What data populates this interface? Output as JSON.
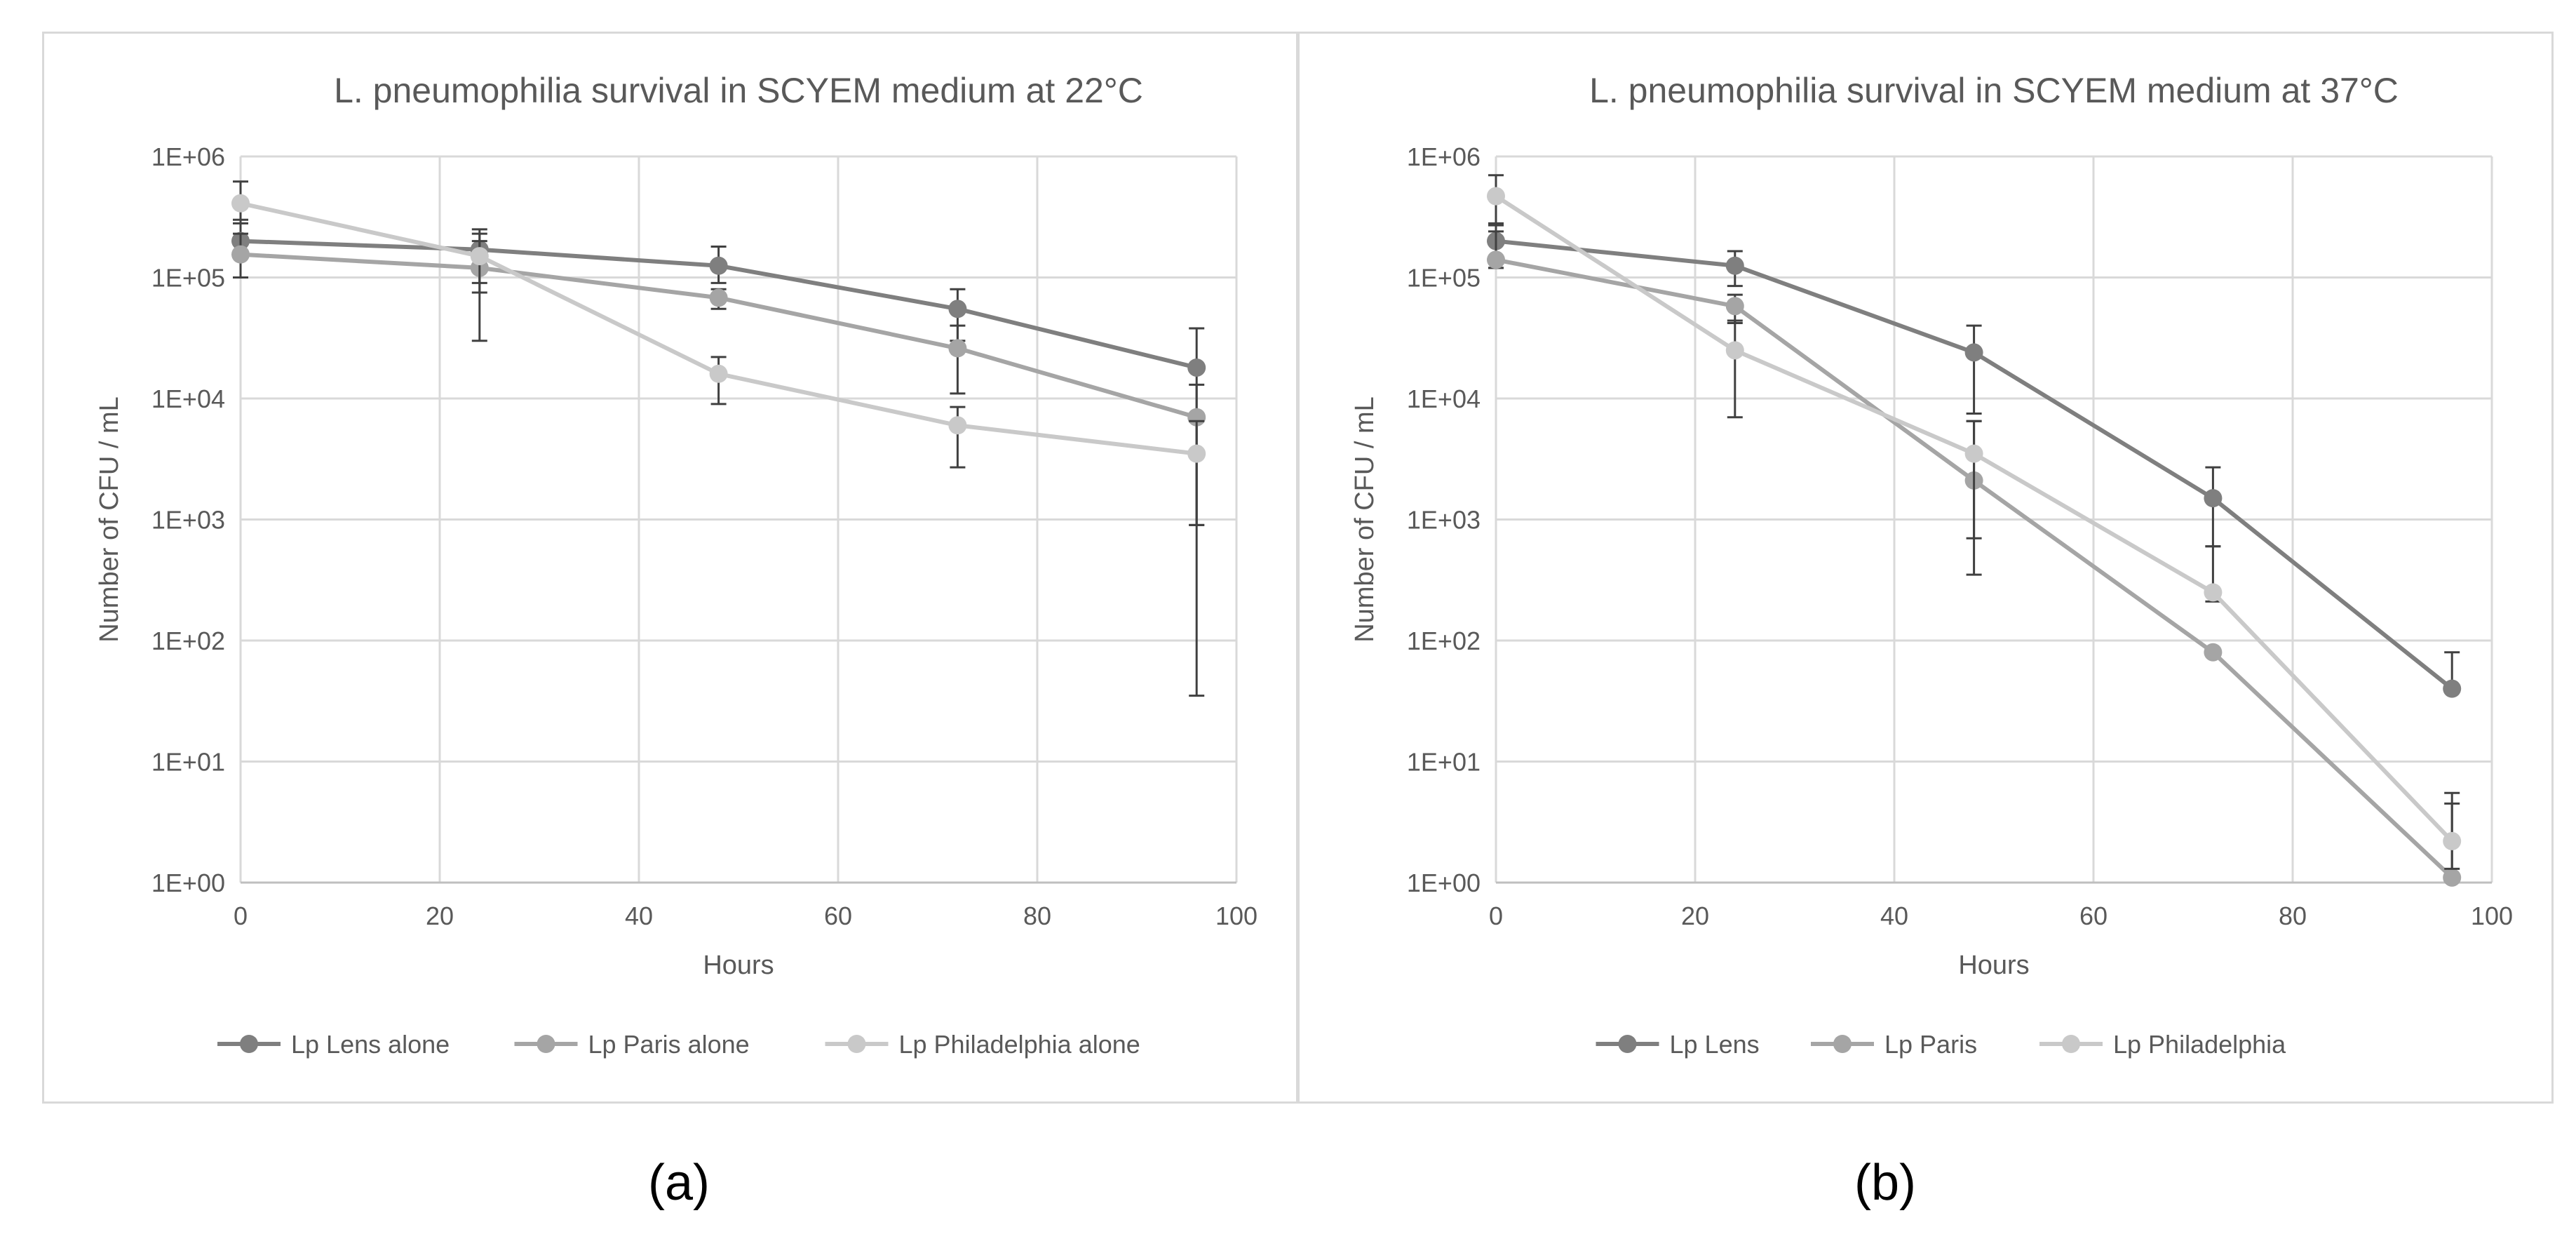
{
  "chart_data": [
    {
      "type": "line",
      "title": "L. pneumophilia survival in SCYEM medium at 22°C",
      "xlabel": "Hours",
      "ylabel": "Number of CFU / mL",
      "xlim": [
        0,
        100
      ],
      "xticks": [
        0,
        20,
        40,
        60,
        80,
        100
      ],
      "ylim": [
        1,
        1000000
      ],
      "yscale": "log",
      "ytick_labels": [
        "1E+00",
        "1E+01",
        "1E+02",
        "1E+03",
        "1E+04",
        "1E+05",
        "1E+06"
      ],
      "grid": true,
      "legend": "bottom",
      "x": [
        0,
        24,
        48,
        72,
        96
      ],
      "series": [
        {
          "name": "Lp Lens alone",
          "color": "#7f7f7f",
          "values": [
            200000,
            170000,
            125000,
            55000,
            18000
          ],
          "error_low": [
            100000,
            90000,
            90000,
            30000,
            900
          ],
          "error_high": [
            300000,
            250000,
            180000,
            80000,
            38000
          ]
        },
        {
          "name": "Lp Paris alone",
          "color": "#a5a5a5",
          "values": [
            155000,
            120000,
            68000,
            26000,
            7000
          ],
          "error_low": [
            100000,
            75000,
            55000,
            11000,
            900
          ],
          "error_high": [
            230000,
            230000,
            80000,
            40000,
            13000
          ]
        },
        {
          "name": "Lp Philadelphia alone",
          "color": "#c9c9c9",
          "values": [
            410000,
            150000,
            16000,
            6000,
            3500
          ],
          "error_low": [
            280000,
            30000,
            9000,
            2700,
            35
          ],
          "error_high": [
            620000,
            200000,
            22000,
            8500,
            6500
          ]
        }
      ]
    },
    {
      "type": "line",
      "title": "L. pneumophilia survival in SCYEM medium at 37°C",
      "xlabel": "Hours",
      "ylabel": "Number of CFU / mL",
      "xlim": [
        0,
        100
      ],
      "xticks": [
        0,
        20,
        40,
        60,
        80,
        100
      ],
      "ylim": [
        1,
        1000000
      ],
      "yscale": "log",
      "ytick_labels": [
        "1E+00",
        "1E+01",
        "1E+02",
        "1E+03",
        "1E+04",
        "1E+05",
        "1E+06"
      ],
      "grid": true,
      "legend": "bottom",
      "x": [
        0,
        24,
        48,
        72,
        96
      ],
      "series": [
        {
          "name": "Lp Lens",
          "color": "#7f7f7f",
          "values": [
            200000,
            125000,
            24000,
            1500,
            40
          ],
          "error_low": [
            120000,
            85000,
            7500,
            600,
            40
          ],
          "error_high": [
            280000,
            165000,
            40000,
            2700,
            80
          ]
        },
        {
          "name": "Lp Paris",
          "color": "#a5a5a5",
          "values": [
            140000,
            58000,
            2100,
            80,
            1.1
          ],
          "error_low": [
            120000,
            42000,
            350,
            80,
            1.1
          ],
          "error_high": [
            240000,
            72000,
            6500,
            80,
            4.5
          ]
        },
        {
          "name": "Lp Philadelphia",
          "color": "#c9c9c9",
          "values": [
            470000,
            25000,
            3500,
            250,
            2.2
          ],
          "error_low": [
            270000,
            7000,
            700,
            210,
            1.3
          ],
          "error_high": [
            700000,
            44000,
            6500,
            600,
            5.5
          ]
        }
      ]
    }
  ],
  "captions": [
    "(a)",
    "(b)"
  ]
}
